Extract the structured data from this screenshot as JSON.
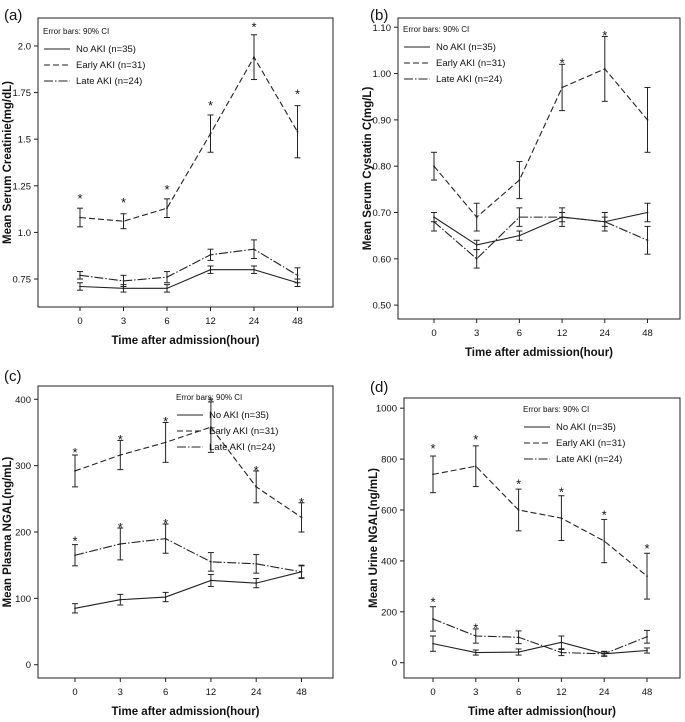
{
  "chart_data": [
    {
      "type": "line",
      "panel_label": "(a)",
      "ylabel": "Mean Serum Creatinie(mg/dL)",
      "xlabel": "Time after admission(hour)",
      "categories": [
        "0",
        "3",
        "6",
        "12",
        "24",
        "48"
      ],
      "ylim": [
        0.6,
        2.15
      ],
      "yticks": [
        0.75,
        1.0,
        1.25,
        1.5,
        1.75,
        2.0
      ],
      "ytick_labels": [
        "0.75",
        "1.0",
        "1.25",
        "1.5",
        "1.75",
        "2.0"
      ],
      "legend_title": "Error bars: 90% CI",
      "legend_position": "top-left",
      "series": [
        {
          "name": "No AKI (n=35)",
          "style": "solid",
          "values": [
            0.71,
            0.7,
            0.7,
            0.8,
            0.8,
            0.73
          ],
          "err": [
            0.02,
            0.02,
            0.02,
            0.02,
            0.02,
            0.02
          ]
        },
        {
          "name": "Early AKI (n=31)",
          "style": "dashed",
          "values": [
            1.08,
            1.06,
            1.13,
            1.53,
            1.94,
            1.54
          ],
          "err": [
            0.05,
            0.04,
            0.05,
            0.1,
            0.12,
            0.14
          ]
        },
        {
          "name": "Late AKI (n=24)",
          "style": "dashdot",
          "values": [
            0.77,
            0.74,
            0.76,
            0.88,
            0.91,
            0.77
          ],
          "err": [
            0.02,
            0.03,
            0.03,
            0.03,
            0.05,
            0.04
          ]
        }
      ],
      "annotations": [
        {
          "text": "*",
          "category": "0",
          "value": 1.2
        },
        {
          "text": "*",
          "category": "3",
          "value": 1.18
        },
        {
          "text": "*",
          "category": "6",
          "value": 1.25
        },
        {
          "text": "*",
          "category": "12",
          "value": 1.7
        },
        {
          "text": "*",
          "category": "24",
          "value": 2.12
        },
        {
          "text": "*",
          "category": "48",
          "value": 1.76
        }
      ]
    },
    {
      "type": "line",
      "panel_label": "(b)",
      "ylabel": "Mean Serum Cystatin C(mg/L)",
      "xlabel": "Time after admission(hour)",
      "categories": [
        "0",
        "3",
        "6",
        "12",
        "24",
        "48"
      ],
      "ylim": [
        0.47,
        1.12
      ],
      "yticks": [
        0.5,
        0.6,
        0.7,
        0.8,
        0.9,
        1.0,
        1.1
      ],
      "ytick_labels": [
        "0.50",
        "0.60",
        "0.70",
        "0.80",
        "0.90",
        "1.00",
        "1.10"
      ],
      "legend_title": "Error bars: 90% CI",
      "legend_position": "top-left",
      "series": [
        {
          "name": "No AKI (n=35)",
          "style": "solid",
          "values": [
            0.69,
            0.63,
            0.65,
            0.69,
            0.68,
            0.7
          ],
          "err": [
            0.01,
            0.01,
            0.01,
            0.01,
            0.01,
            0.02
          ]
        },
        {
          "name": "Early AKI (n=31)",
          "style": "dashed",
          "values": [
            0.8,
            0.69,
            0.77,
            0.97,
            1.01,
            0.9
          ],
          "err": [
            0.03,
            0.03,
            0.04,
            0.05,
            0.07,
            0.07
          ]
        },
        {
          "name": "Late AKI (n=24)",
          "style": "dashdot",
          "values": [
            0.68,
            0.6,
            0.69,
            0.69,
            0.68,
            0.64
          ],
          "err": [
            0.02,
            0.02,
            0.02,
            0.02,
            0.02,
            0.03
          ]
        }
      ],
      "annotations": [
        {
          "text": "*",
          "category": "12",
          "value": 1.03
        },
        {
          "text": "*",
          "category": "24",
          "value": 1.09
        }
      ]
    },
    {
      "type": "line",
      "panel_label": "(c)",
      "ylabel": "Mean Plasma NGAL(ng/mL)",
      "xlabel": "Time after admission(hour)",
      "categories": [
        "0",
        "3",
        "6",
        "12",
        "24",
        "48"
      ],
      "ylim": [
        -20,
        420
      ],
      "yticks": [
        0,
        100,
        200,
        300,
        400
      ],
      "ytick_labels": [
        "0",
        "100",
        "200",
        "300",
        "400"
      ],
      "legend_title": "Error bars: 90% CI",
      "legend_position": "top-right",
      "series": [
        {
          "name": "No AKI (n=35)",
          "style": "solid",
          "values": [
            85,
            98,
            102,
            127,
            123,
            140
          ],
          "err": [
            7,
            8,
            7,
            9,
            7,
            9
          ]
        },
        {
          "name": "Early AKI (n=31)",
          "style": "dashed",
          "values": [
            292,
            316,
            335,
            358,
            268,
            222
          ],
          "err": [
            24,
            22,
            30,
            38,
            24,
            22
          ]
        },
        {
          "name": "Late AKI (n=24)",
          "style": "dashdot",
          "values": [
            165,
            182,
            190,
            155,
            152,
            140
          ],
          "err": [
            16,
            24,
            22,
            14,
            14,
            10
          ]
        }
      ],
      "annotations": [
        {
          "text": "*",
          "category": "0",
          "value": 325
        },
        {
          "text": "*",
          "category": "3",
          "value": 345
        },
        {
          "text": "*",
          "category": "6",
          "value": 372
        },
        {
          "text": "*",
          "category": "12",
          "value": 402
        },
        {
          "text": "*",
          "category": "24",
          "value": 298
        },
        {
          "text": "*",
          "category": "48",
          "value": 250
        },
        {
          "text": "*",
          "category": "0",
          "value": 192
        },
        {
          "text": "*",
          "category": "3",
          "value": 212
        },
        {
          "text": "*",
          "category": "6",
          "value": 218
        }
      ]
    },
    {
      "type": "line",
      "panel_label": "(d)",
      "ylabel": "Mean Urine NGAL(ng/mL)",
      "xlabel": "Time after admission(hour)",
      "categories": [
        "0",
        "3",
        "6",
        "12",
        "24",
        "48"
      ],
      "ylim": [
        -60,
        1040
      ],
      "yticks": [
        0,
        200,
        400,
        600,
        800,
        1000
      ],
      "ytick_labels": [
        "0",
        "200",
        "400",
        "600",
        "800",
        "1000"
      ],
      "legend_title": "Error bars: 90% CI",
      "legend_position": "top-right",
      "series": [
        {
          "name": "No AKI (n=35)",
          "style": "solid",
          "values": [
            75,
            40,
            42,
            80,
            35,
            48
          ],
          "err": [
            30,
            10,
            12,
            25,
            8,
            10
          ]
        },
        {
          "name": "Early AKI (n=31)",
          "style": "dashed",
          "values": [
            740,
            772,
            600,
            568,
            478,
            340
          ],
          "err": [
            72,
            80,
            82,
            88,
            85,
            90
          ]
        },
        {
          "name": "Late AKI (n=24)",
          "style": "dashdot",
          "values": [
            172,
            105,
            100,
            40,
            35,
            102
          ],
          "err": [
            48,
            28,
            25,
            12,
            10,
            25
          ]
        }
      ],
      "annotations": [
        {
          "text": "*",
          "category": "0",
          "value": 855
        },
        {
          "text": "*",
          "category": "3",
          "value": 890
        },
        {
          "text": "*",
          "category": "6",
          "value": 715
        },
        {
          "text": "*",
          "category": "12",
          "value": 685
        },
        {
          "text": "*",
          "category": "24",
          "value": 595
        },
        {
          "text": "*",
          "category": "48",
          "value": 462
        },
        {
          "text": "*",
          "category": "0",
          "value": 252
        },
        {
          "text": "*",
          "category": "3",
          "value": 150
        }
      ]
    }
  ]
}
